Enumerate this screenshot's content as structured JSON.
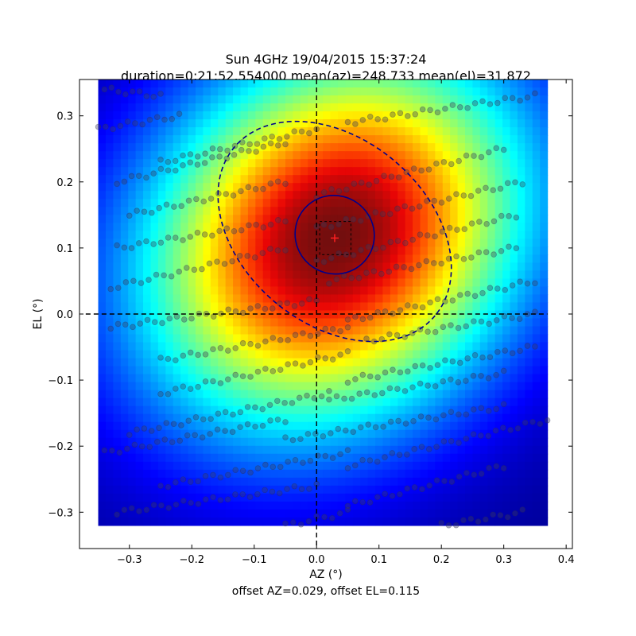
{
  "chart_data": {
    "type": "heatmap",
    "title_line1": "Sun 4GHz 19/04/2015 15:37:24",
    "title_line2": "duration=0:21:52.554000 mean(az)=248.733 mean(el)=31.872",
    "xlabel": "AZ (°)",
    "ylabel": "EL (°)",
    "footer": "offset AZ=0.029, offset EL=0.115",
    "xlim": [
      -0.38,
      0.41
    ],
    "ylim": [
      -0.355,
      0.355
    ],
    "xticks": [
      -0.3,
      -0.2,
      -0.1,
      0.0,
      0.1,
      0.2,
      0.3,
      0.4
    ],
    "xtick_labels": [
      "−0.3",
      "−0.2",
      "−0.1",
      "0.0",
      "0.1",
      "0.2",
      "0.3",
      "0.4"
    ],
    "yticks": [
      -0.3,
      -0.2,
      -0.1,
      0.0,
      0.1,
      0.2,
      0.3
    ],
    "ytick_labels": [
      "−0.3",
      "−0.2",
      "−0.1",
      "0.0",
      "0.1",
      "0.2",
      "0.3"
    ],
    "colormap": "jet",
    "heatmap_extent": {
      "x": [
        -0.35,
        0.37
      ],
      "y": [
        -0.32,
        0.355
      ]
    },
    "beam_center": {
      "az": 0.029,
      "el": 0.115
    },
    "guide_lines": {
      "az": 0.0,
      "el": 0.0
    },
    "inner_ellipse": {
      "center": [
        0.029,
        0.12
      ],
      "rx": 0.064,
      "ry": 0.059,
      "angle_deg": -35,
      "color": "#00008b",
      "style": "solid"
    },
    "outer_ellipse": {
      "center": [
        0.029,
        0.125
      ],
      "rx": 0.21,
      "ry": 0.14,
      "angle_deg": -40,
      "color": "#00008b",
      "style": "dashed"
    },
    "center_box": {
      "x": [
        0.005,
        0.055
      ],
      "y": [
        0.09,
        0.14
      ]
    },
    "scan_lines": {
      "description": "sample points along raster scan rows",
      "rows": [
        {
          "el_start": 0.34,
          "az_start": -0.34,
          "el_end": 0.33,
          "az_end": -0.25
        },
        {
          "el_start": 0.28,
          "az_start": -0.35,
          "el_end": 0.3,
          "az_end": -0.22
        },
        {
          "el_start": 0.23,
          "az_start": -0.25,
          "el_end": 0.28,
          "az_end": 0.0
        },
        {
          "el_start": 0.29,
          "az_start": 0.05,
          "el_end": 0.33,
          "az_end": 0.35
        },
        {
          "el_start": 0.2,
          "az_start": -0.32,
          "el_end": 0.26,
          "az_end": -0.05
        },
        {
          "el_start": 0.18,
          "az_start": 0.0,
          "el_end": 0.25,
          "az_end": 0.3
        },
        {
          "el_start": 0.15,
          "az_start": -0.3,
          "el_end": 0.2,
          "az_end": -0.05
        },
        {
          "el_start": 0.13,
          "az_start": 0.0,
          "el_end": 0.2,
          "az_end": 0.33
        },
        {
          "el_start": 0.1,
          "az_start": -0.32,
          "el_end": 0.14,
          "az_end": -0.05
        },
        {
          "el_start": 0.08,
          "az_start": 0.0,
          "el_end": 0.15,
          "az_end": 0.32
        },
        {
          "el_start": 0.04,
          "az_start": -0.33,
          "el_end": 0.1,
          "az_end": -0.05
        },
        {
          "el_start": 0.05,
          "az_start": 0.02,
          "el_end": 0.1,
          "az_end": 0.32
        },
        {
          "el_start": -0.02,
          "az_start": -0.33,
          "el_end": 0.02,
          "az_end": 0.0
        },
        {
          "el_start": -0.01,
          "az_start": 0.05,
          "el_end": 0.05,
          "az_end": 0.35
        },
        {
          "el_start": -0.07,
          "az_start": -0.25,
          "el_end": -0.02,
          "az_end": 0.05
        },
        {
          "el_start": -0.04,
          "az_start": 0.08,
          "el_end": 0.0,
          "az_end": 0.35
        },
        {
          "el_start": -0.12,
          "az_start": -0.25,
          "el_end": -0.06,
          "az_end": 0.05
        },
        {
          "el_start": -0.1,
          "az_start": 0.05,
          "el_end": -0.05,
          "az_end": 0.35
        },
        {
          "el_start": -0.18,
          "az_start": -0.3,
          "el_end": -0.12,
          "az_end": 0.02
        },
        {
          "el_start": -0.13,
          "az_start": 0.02,
          "el_end": -0.09,
          "az_end": 0.3
        },
        {
          "el_start": -0.21,
          "az_start": -0.34,
          "el_end": -0.16,
          "az_end": -0.05
        },
        {
          "el_start": -0.19,
          "az_start": -0.05,
          "el_end": -0.14,
          "az_end": 0.3
        },
        {
          "el_start": -0.26,
          "az_start": -0.25,
          "el_end": -0.21,
          "az_end": 0.05
        },
        {
          "el_start": -0.23,
          "az_start": 0.05,
          "el_end": -0.16,
          "az_end": 0.37
        },
        {
          "el_start": -0.3,
          "az_start": -0.32,
          "el_end": -0.26,
          "az_end": 0.0
        },
        {
          "el_start": -0.29,
          "az_start": 0.05,
          "el_end": -0.23,
          "az_end": 0.3
        },
        {
          "el_start": -0.32,
          "az_start": -0.05,
          "el_end": -0.3,
          "az_end": 0.05
        },
        {
          "el_start": -0.32,
          "az_start": 0.2,
          "el_end": -0.3,
          "az_end": 0.33
        }
      ]
    }
  }
}
